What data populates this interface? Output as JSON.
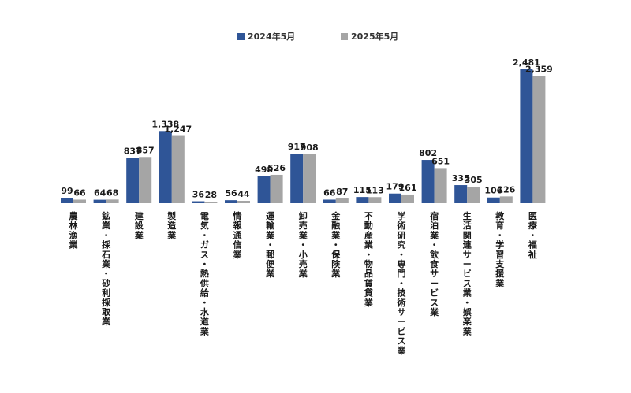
{
  "chart_data": {
    "type": "bar",
    "legend_position": "top-center",
    "grid": false,
    "ylim": [
      0,
      2600
    ],
    "series": [
      {
        "name": "2024年5月",
        "color": "#2f5597",
        "values": [
          99,
          64,
          837,
          1338,
          36,
          56,
          498,
          917,
          66,
          115,
          179,
          802,
          335,
          106,
          2481
        ],
        "labels": [
          "99",
          "64",
          "837",
          "1,338",
          "36",
          "56",
          "498",
          "917",
          "66",
          "115",
          "179",
          "802",
          "335",
          "106",
          "2,481"
        ]
      },
      {
        "name": "2025年5月",
        "color": "#a5a5a5",
        "values": [
          66,
          68,
          857,
          1247,
          28,
          44,
          526,
          908,
          87,
          113,
          161,
          651,
          305,
          126,
          2359
        ],
        "labels": [
          "66",
          "68",
          "857",
          "1,247",
          "28",
          "44",
          "526",
          "908",
          "87",
          "113",
          "161",
          "651",
          "305",
          "126",
          "2,359"
        ]
      }
    ],
    "categories": [
      "農林漁業",
      "鉱業・採石業・砂利採取業",
      "建設業",
      "製造業",
      "電気・ガス・熱供給・水道業",
      "情報通信業",
      "運輸業・郵便業",
      "卸売業・小売業",
      "金融業・保険業",
      "不動産業・物品賃貸業",
      "学術研究・専門・技術サービス業",
      "宿泊業・飲食サービス業",
      "生活関連サービス業・娯楽業",
      "教育・学習支援業",
      "医療・福祉"
    ]
  }
}
